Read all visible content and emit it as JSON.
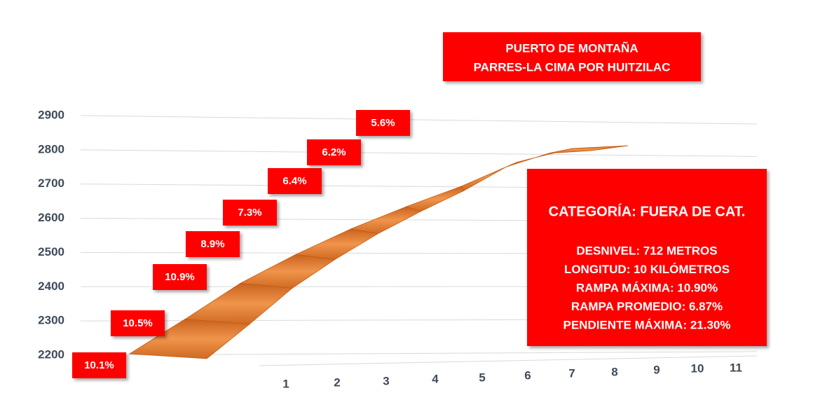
{
  "chart_data": {
    "type": "line",
    "title": [
      "PUERTO DE MONTAÑA",
      "PARRES-LA CIMA POR HUITZILAC"
    ],
    "categories": [
      "1",
      "2",
      "3",
      "4",
      "5",
      "6",
      "7",
      "8",
      "9",
      "10",
      "11"
    ],
    "values": [
      2200,
      2301,
      2406,
      2490,
      2565,
      2630,
      2690,
      2760,
      2800,
      2808,
      null
    ],
    "color": "#e07a2c",
    "ylim": [
      2200,
      2900
    ],
    "yticks": [
      2200,
      2300,
      2400,
      2500,
      2600,
      2700,
      2800,
      2900
    ],
    "grid": true,
    "annotations": [
      "10.1%",
      "10.5%",
      "10.9%",
      "8.9%",
      "7.3%",
      "6.4%",
      "6.2%",
      "5.6%"
    ],
    "info": {
      "heading": "CATEGORÍA: FUERA DE CAT.",
      "lines": [
        "DESNIVEL: 712 METROS",
        "LONGITUD: 10 KILÓMETROS",
        "RAMPA MÁXIMA: 10.90%",
        "RAMPA PROMEDIO: 6.87%",
        "PENDIENTE MÁXIMA: 21.30%"
      ]
    }
  }
}
